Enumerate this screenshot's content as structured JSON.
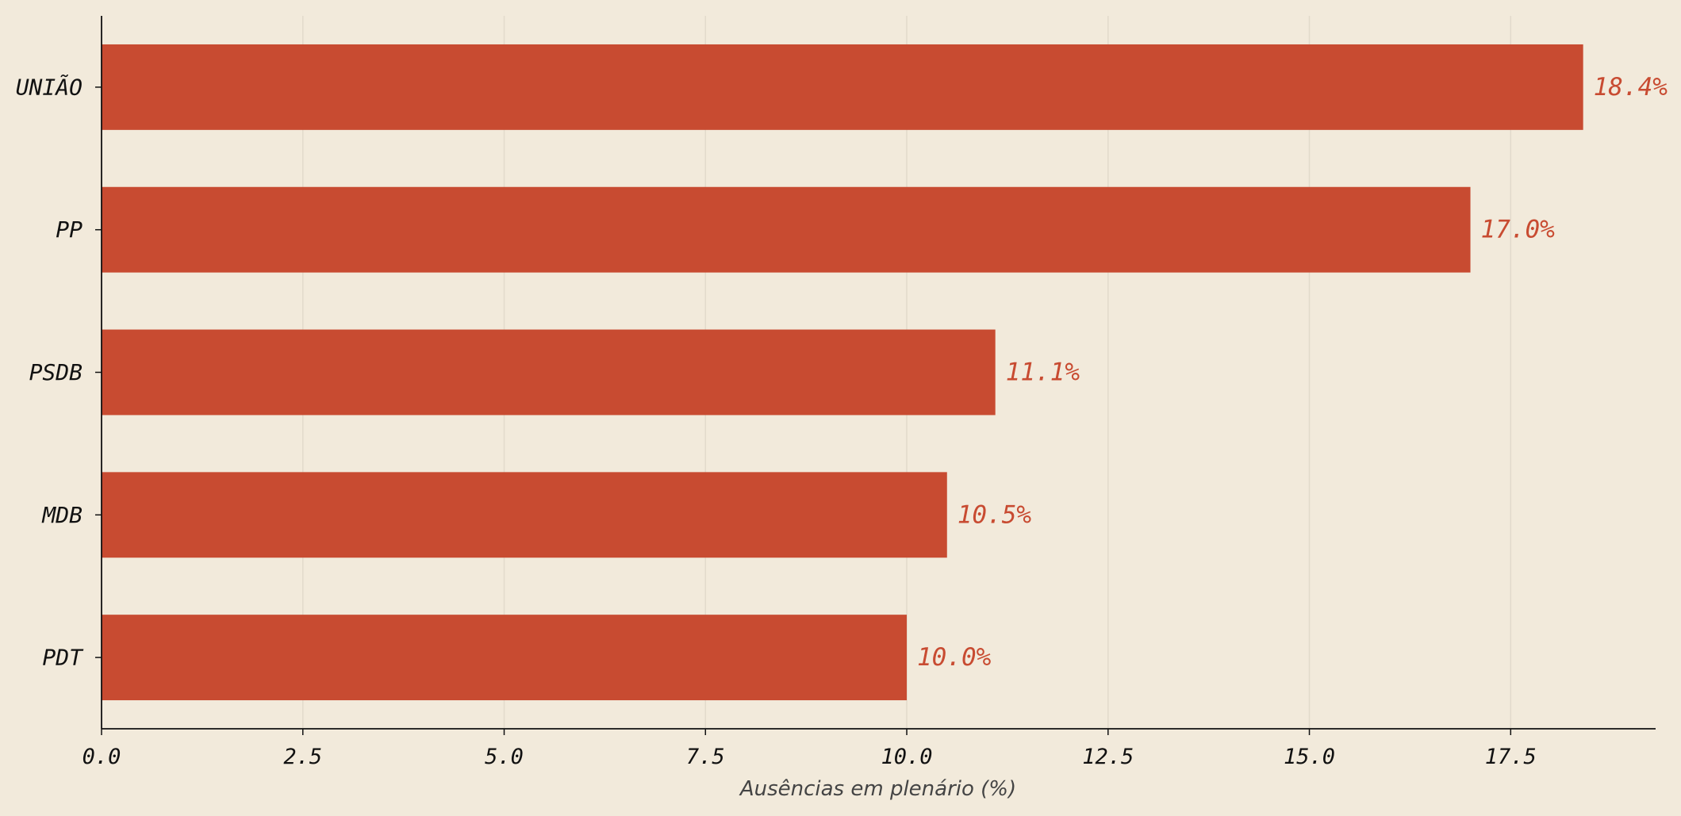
{
  "chart_data": {
    "type": "bar",
    "orientation": "horizontal",
    "categories": [
      "UNIÃO",
      "PP",
      "PSDB",
      "MDB",
      "PDT"
    ],
    "values": [
      18.4,
      17.0,
      11.1,
      10.5,
      10.0
    ],
    "value_labels": [
      "18.4%",
      "17.0%",
      "11.1%",
      "10.5%",
      "10.0%"
    ],
    "xlabel": "Ausências em plenário (%)",
    "xlim": [
      0,
      19.3
    ],
    "xticks": [
      0.0,
      2.5,
      5.0,
      7.5,
      10.0,
      12.5,
      15.0,
      17.5
    ],
    "xtick_labels": [
      "0.0",
      "2.5",
      "5.0",
      "7.5",
      "10.0",
      "12.5",
      "15.0",
      "17.5"
    ],
    "grid": "vertical",
    "colors": {
      "bar": "#c84b31",
      "background": "#f2eadb",
      "grid": "#e2dacb",
      "axis": "#111111"
    }
  }
}
